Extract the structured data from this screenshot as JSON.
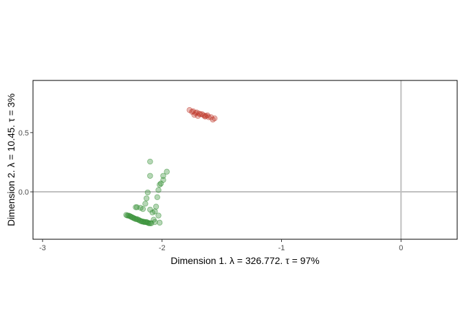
{
  "chart_data": {
    "type": "scatter",
    "title": "",
    "xlabel": "Dimension 1.   λ = 326.772.  τ = 97%",
    "ylabel": "Dimension 2.   λ = 10.45.  τ = 3%",
    "xlim": [
      -3.08,
      0.47
    ],
    "ylim": [
      -0.4,
      0.94
    ],
    "x_ticks": [
      -3,
      -2,
      -1,
      0
    ],
    "x_tick_labels": [
      "-3",
      "-2",
      "-1",
      "0"
    ],
    "y_ticks": [
      0.0,
      0.5
    ],
    "y_tick_labels": [
      "0.0",
      "0.5"
    ],
    "reference_lines": {
      "x": 0,
      "y": 0,
      "color": "#bfbfbf"
    },
    "grid": false,
    "legend": "none",
    "series": [
      {
        "color": "#c0392b",
        "points": [
          [
            -1.77,
            0.69
          ],
          [
            -1.75,
            0.675
          ],
          [
            -1.74,
            0.68
          ],
          [
            -1.72,
            0.665
          ],
          [
            -1.71,
            0.67
          ],
          [
            -1.69,
            0.66
          ],
          [
            -1.68,
            0.655
          ],
          [
            -1.665,
            0.655
          ],
          [
            -1.65,
            0.645
          ],
          [
            -1.635,
            0.64
          ],
          [
            -1.62,
            0.645
          ],
          [
            -1.61,
            0.63
          ],
          [
            -1.59,
            0.63
          ],
          [
            -1.575,
            0.61
          ],
          [
            -1.56,
            0.62
          ],
          [
            -1.73,
            0.65
          ],
          [
            -1.7,
            0.64
          ],
          [
            -1.64,
            0.635
          ]
        ]
      },
      {
        "color": "#2e8b2e",
        "points": [
          [
            -2.1,
            0.255
          ],
          [
            -2.1,
            0.135
          ],
          [
            -1.96,
            0.17
          ],
          [
            -1.99,
            0.135
          ],
          [
            -1.99,
            0.1
          ],
          [
            -2.01,
            0.07
          ],
          [
            -2.02,
            0.06
          ],
          [
            -2.03,
            0.015
          ],
          [
            -2.04,
            -0.045
          ],
          [
            -2.12,
            -0.005
          ],
          [
            -2.13,
            -0.055
          ],
          [
            -2.14,
            -0.1
          ],
          [
            -2.22,
            -0.13
          ],
          [
            -2.21,
            -0.13
          ],
          [
            -2.18,
            -0.135
          ],
          [
            -2.16,
            -0.145
          ],
          [
            -2.05,
            -0.125
          ],
          [
            -2.06,
            -0.165
          ],
          [
            -2.08,
            -0.175
          ],
          [
            -2.1,
            -0.15
          ],
          [
            -2.03,
            -0.2
          ],
          [
            -2.07,
            -0.235
          ],
          [
            -2.02,
            -0.26
          ],
          [
            -2.06,
            -0.255
          ],
          [
            -2.09,
            -0.265
          ],
          [
            -2.3,
            -0.195
          ],
          [
            -2.29,
            -0.2
          ],
          [
            -2.28,
            -0.2
          ],
          [
            -2.27,
            -0.205
          ],
          [
            -2.26,
            -0.21
          ],
          [
            -2.25,
            -0.215
          ],
          [
            -2.24,
            -0.22
          ],
          [
            -2.23,
            -0.225
          ],
          [
            -2.22,
            -0.23
          ],
          [
            -2.21,
            -0.23
          ],
          [
            -2.2,
            -0.235
          ],
          [
            -2.19,
            -0.24
          ],
          [
            -2.18,
            -0.245
          ],
          [
            -2.17,
            -0.25
          ],
          [
            -2.16,
            -0.25
          ],
          [
            -2.15,
            -0.255
          ],
          [
            -2.14,
            -0.255
          ],
          [
            -2.13,
            -0.255
          ],
          [
            -2.12,
            -0.26
          ],
          [
            -2.11,
            -0.265
          ],
          [
            -2.1,
            -0.265
          ]
        ]
      }
    ]
  }
}
